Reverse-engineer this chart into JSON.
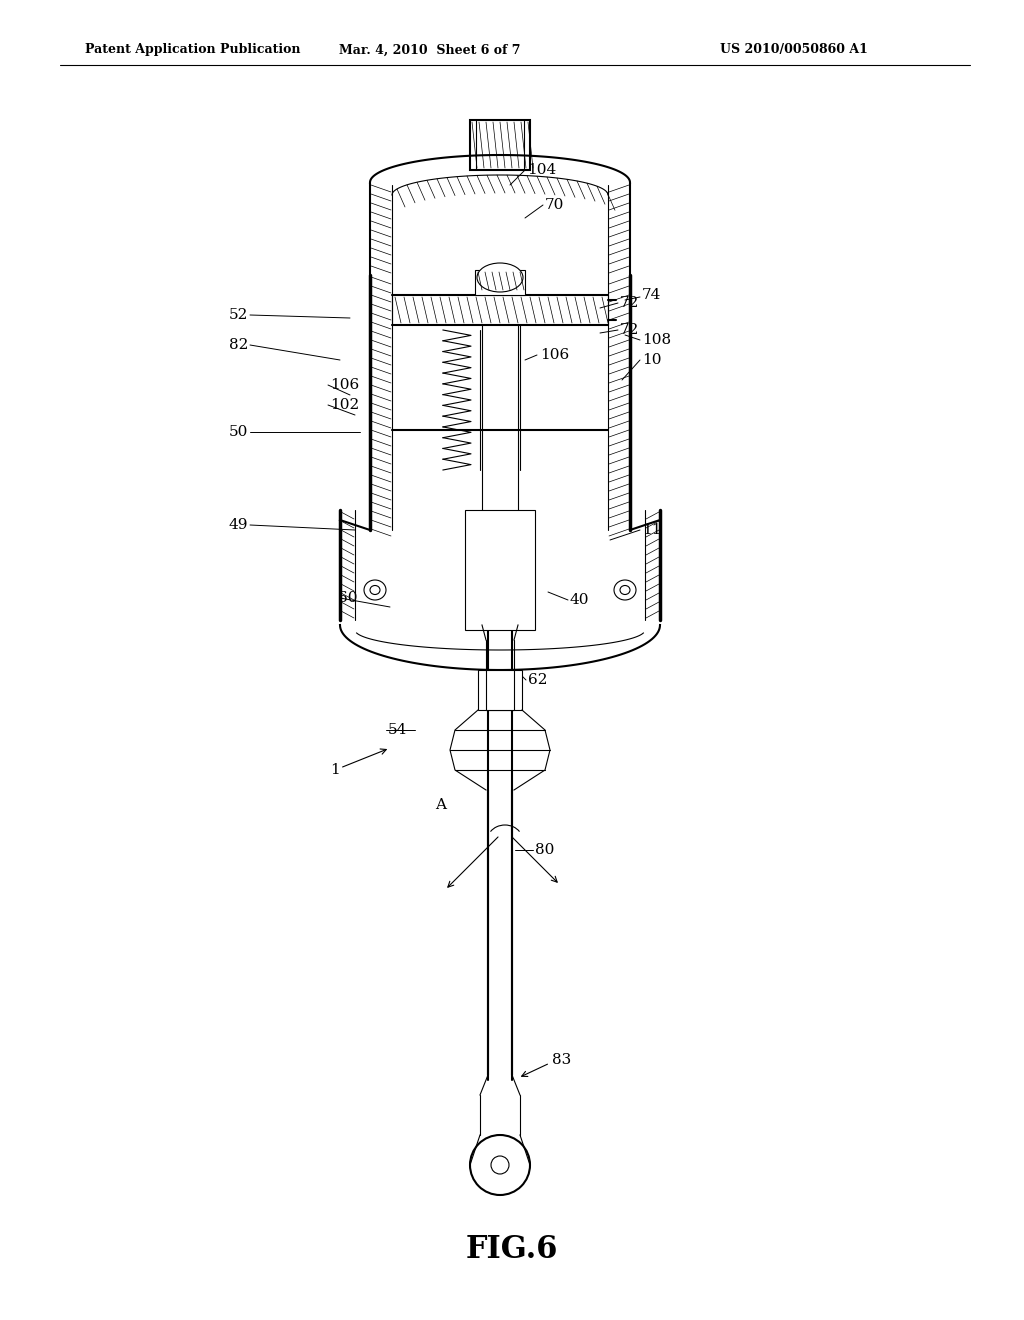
{
  "title": "FIG.6",
  "header_left": "Patent Application Publication",
  "header_middle": "Mar. 4, 2010  Sheet 6 of 7",
  "header_right": "US 2010/0050860 A1",
  "background_color": "#ffffff",
  "line_color": "#000000",
  "fig_width": 10.24,
  "fig_height": 13.2,
  "dpi": 100
}
